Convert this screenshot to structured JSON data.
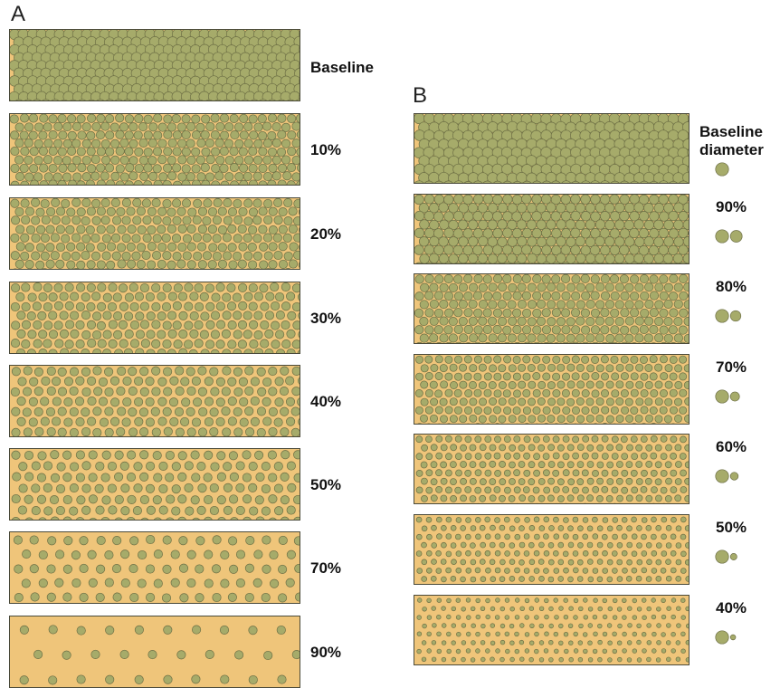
{
  "colors": {
    "matrix": "#efc57a",
    "particle": "#a6ab6a",
    "particle_stroke": "#6d6f45",
    "border": "#4a4a3a"
  },
  "panelA": {
    "letter": "A",
    "rows": [
      {
        "label": "Baseline",
        "removed_fraction": 0.0
      },
      {
        "label": "10%",
        "removed_fraction": 0.1
      },
      {
        "label": "20%",
        "removed_fraction": 0.2
      },
      {
        "label": "30%",
        "removed_fraction": 0.3
      },
      {
        "label": "40%",
        "removed_fraction": 0.4
      },
      {
        "label": "50%",
        "removed_fraction": 0.5
      },
      {
        "label": "70%",
        "removed_fraction": 0.7
      },
      {
        "label": "90%",
        "removed_fraction": 0.9
      }
    ]
  },
  "panelB": {
    "letter": "B",
    "header_line1": "Baseline",
    "header_line2": "diameter",
    "rows": [
      {
        "label": "",
        "diameter_fraction": 1.0
      },
      {
        "label": "90%",
        "diameter_fraction": 0.9
      },
      {
        "label": "80%",
        "diameter_fraction": 0.8
      },
      {
        "label": "70%",
        "diameter_fraction": 0.7
      },
      {
        "label": "60%",
        "diameter_fraction": 0.6
      },
      {
        "label": "50%",
        "diameter_fraction": 0.5
      },
      {
        "label": "40%",
        "diameter_fraction": 0.4
      }
    ]
  }
}
